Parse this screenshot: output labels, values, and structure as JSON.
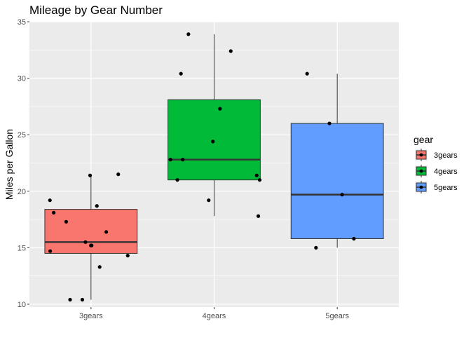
{
  "chart_data": {
    "type": "box",
    "title": "Mileage by Gear Number",
    "xlabel": "",
    "ylabel": "Miles per Gallon",
    "ylim": [
      9.75,
      35.0
    ],
    "yticks": [
      10,
      15,
      20,
      25,
      30,
      35
    ],
    "categories": [
      "3gears",
      "4gears",
      "5gears"
    ],
    "grid": true,
    "legend": {
      "title": "gear",
      "position": "right",
      "entries": [
        "3gears",
        "4gears",
        "5gears"
      ]
    },
    "colors": [
      "#F8766D",
      "#00BA38",
      "#619CFF"
    ],
    "boxes": [
      {
        "category": "3gears",
        "min": 10.4,
        "q1": 14.5,
        "median": 15.5,
        "q3": 18.4,
        "max": 21.5
      },
      {
        "category": "4gears",
        "min": 17.8,
        "q1": 21.0,
        "median": 22.8,
        "q3": 28.1,
        "max": 33.9
      },
      {
        "category": "5gears",
        "min": 15.0,
        "q1": 15.8,
        "median": 19.7,
        "q3": 26.0,
        "max": 30.4
      }
    ],
    "points": [
      {
        "category": "3gears",
        "values": [
          21.4,
          18.7,
          18.1,
          17.3,
          15.5,
          15.2,
          14.7,
          14.3,
          13.3,
          10.4,
          10.4,
          21.5,
          16.4,
          19.2,
          15.2
        ]
      },
      {
        "category": "4gears",
        "values": [
          33.9,
          32.4,
          30.4,
          27.3,
          24.4,
          22.8,
          22.8,
          21.4,
          21.0,
          21.0,
          19.2,
          17.8
        ]
      },
      {
        "category": "5gears",
        "values": [
          30.4,
          26.0,
          19.7,
          15.8,
          15.0
        ]
      }
    ]
  }
}
